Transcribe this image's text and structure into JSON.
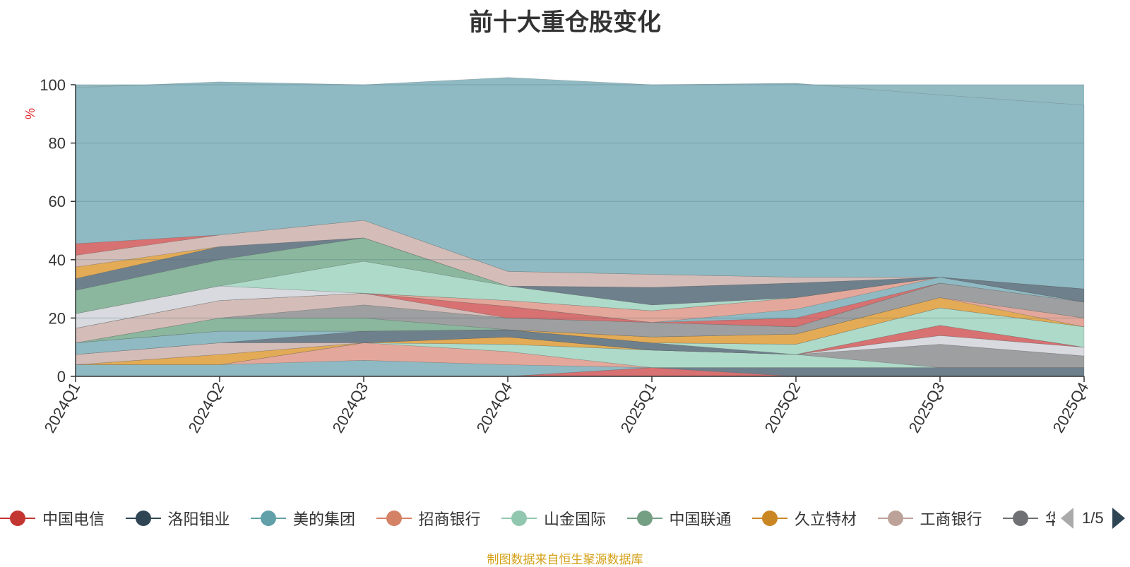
{
  "title": "前十大重仓股变化",
  "source": "制图数据来自恒生聚源数据库",
  "colors": {
    "title": "#333333",
    "source": "#d4a017",
    "unit": "#e0292e",
    "axis": "#333333",
    "background_band": "#91bac1"
  },
  "legend": {
    "page_text": "1/5",
    "truncated_last_label": "华"
  },
  "chart_data": {
    "type": "area",
    "stacked": true,
    "title": "前十大重仓股变化",
    "ylabel": "%",
    "ylim": [
      0,
      100
    ],
    "yticks": [
      0,
      20,
      40,
      60,
      80,
      100
    ],
    "grid": true,
    "legend_position": "bottom",
    "categories": [
      "2024Q1",
      "2024Q2",
      "2024Q3",
      "2024Q4",
      "2025Q1",
      "2025Q2",
      "2025Q3",
      "2025Q4"
    ],
    "series": [
      {
        "name": "",
        "color": "#d87171",
        "values": [
          0,
          0,
          0,
          0,
          3,
          0,
          0,
          0
        ]
      },
      {
        "name": "",
        "color": "#6f808d",
        "values": [
          0,
          0,
          0,
          0,
          0,
          3,
          3,
          3
        ]
      },
      {
        "name": "",
        "color": "#8fbac3",
        "values": [
          4,
          4,
          5.5,
          4,
          0,
          0,
          0,
          0
        ]
      },
      {
        "name": "",
        "color": "#e3a89b",
        "values": [
          0,
          0,
          6,
          4.5,
          0,
          0,
          0,
          0
        ]
      },
      {
        "name": "",
        "color": "#aedac9",
        "values": [
          0,
          0,
          0,
          2.5,
          6,
          4.5,
          0,
          0
        ]
      },
      {
        "name": "",
        "color": "#9e9fa0",
        "values": [
          0,
          0,
          0,
          0,
          0,
          0,
          8,
          4
        ]
      },
      {
        "name": "",
        "color": "#e3ab55",
        "values": [
          0,
          3.5,
          0,
          2.5,
          0,
          0,
          0,
          0
        ]
      },
      {
        "name": "",
        "color": "#d8dadf",
        "values": [
          0,
          0,
          0,
          0,
          0,
          0,
          3,
          3
        ]
      },
      {
        "name": "",
        "color": "#d4bdb8",
        "values": [
          3.5,
          4,
          0,
          0,
          0,
          0,
          0,
          0
        ]
      },
      {
        "name": "",
        "color": "#d87171",
        "values": [
          0,
          0,
          0,
          0,
          0,
          0,
          3.5,
          0
        ]
      },
      {
        "name": "",
        "color": "#6f808d",
        "values": [
          0,
          0,
          4,
          2.5,
          2.5,
          0,
          0,
          0
        ]
      },
      {
        "name": "",
        "color": "#aedac9",
        "values": [
          0,
          0,
          0,
          0,
          0,
          3.5,
          6,
          7
        ]
      },
      {
        "name": "",
        "color": "#8fbac3",
        "values": [
          4,
          4,
          0,
          0,
          0,
          0,
          0,
          0
        ]
      },
      {
        "name": "",
        "color": "#e3ab55",
        "values": [
          0,
          0,
          0,
          0,
          2,
          3.5,
          3.5,
          0
        ]
      },
      {
        "name": "",
        "color": "#e3a89b",
        "values": [
          0,
          0,
          0,
          0,
          0,
          0,
          0,
          3
        ]
      },
      {
        "name": "",
        "color": "#8ab79d",
        "values": [
          0,
          4.5,
          4.5,
          0,
          0,
          0,
          0,
          0
        ]
      },
      {
        "name": "",
        "color": "#9e9fa0",
        "values": [
          0,
          0,
          4.5,
          4,
          5,
          2.5,
          5,
          5.5
        ]
      },
      {
        "name": "",
        "color": "#d4bdb8",
        "values": [
          5,
          6,
          4,
          0,
          0,
          0,
          0,
          0
        ]
      },
      {
        "name": "",
        "color": "#d87171",
        "values": [
          0,
          0,
          0,
          4,
          0,
          3,
          0,
          0
        ]
      },
      {
        "name": "",
        "color": "#8fbac3",
        "values": [
          0,
          0,
          0,
          0,
          0,
          3,
          2,
          0
        ]
      },
      {
        "name": "",
        "color": "#e3a89b",
        "values": [
          0,
          0,
          0,
          2,
          4,
          4,
          0,
          0
        ]
      },
      {
        "name": "",
        "color": "#d8dadf",
        "values": [
          5,
          5,
          0,
          0,
          0,
          0,
          0,
          0
        ]
      },
      {
        "name": "",
        "color": "#aedac9",
        "values": [
          0,
          0,
          11,
          5,
          2,
          0,
          0,
          0
        ]
      },
      {
        "name": "",
        "color": "#8ab79d",
        "values": [
          8,
          9,
          8,
          0,
          0,
          0,
          0,
          0
        ]
      },
      {
        "name": "",
        "color": "#6f808d",
        "values": [
          4,
          4.5,
          0,
          0,
          6,
          5,
          0,
          4.5
        ]
      },
      {
        "name": "",
        "color": "#e3ab55",
        "values": [
          4,
          0,
          0,
          0,
          0,
          0,
          0,
          0
        ]
      },
      {
        "name": "",
        "color": "#d4bdb8",
        "values": [
          4,
          4,
          6,
          5,
          4.5,
          2,
          0,
          0
        ]
      },
      {
        "name": "",
        "color": "#d87171",
        "values": [
          4,
          0,
          0,
          0,
          0,
          0,
          0,
          0
        ]
      },
      {
        "name": "",
        "color": "#8fbac3",
        "values": [
          53.5,
          52.5,
          46.5,
          66.5,
          65,
          66.5,
          62.5,
          63
        ]
      }
    ],
    "legend_entries": [
      {
        "name": "中国电信",
        "color": "#c23531"
      },
      {
        "name": "洛阳钼业",
        "color": "#2f4554"
      },
      {
        "name": "美的集团",
        "color": "#61a0a8"
      },
      {
        "name": "招商银行",
        "color": "#d48265"
      },
      {
        "name": "山金国际",
        "color": "#91c7ae"
      },
      {
        "name": "中国联通",
        "color": "#749f83"
      },
      {
        "name": "久立特材",
        "color": "#ca8622"
      },
      {
        "name": "工商银行",
        "color": "#bda29a"
      },
      {
        "name": "",
        "color": "#6e7074"
      }
    ]
  }
}
